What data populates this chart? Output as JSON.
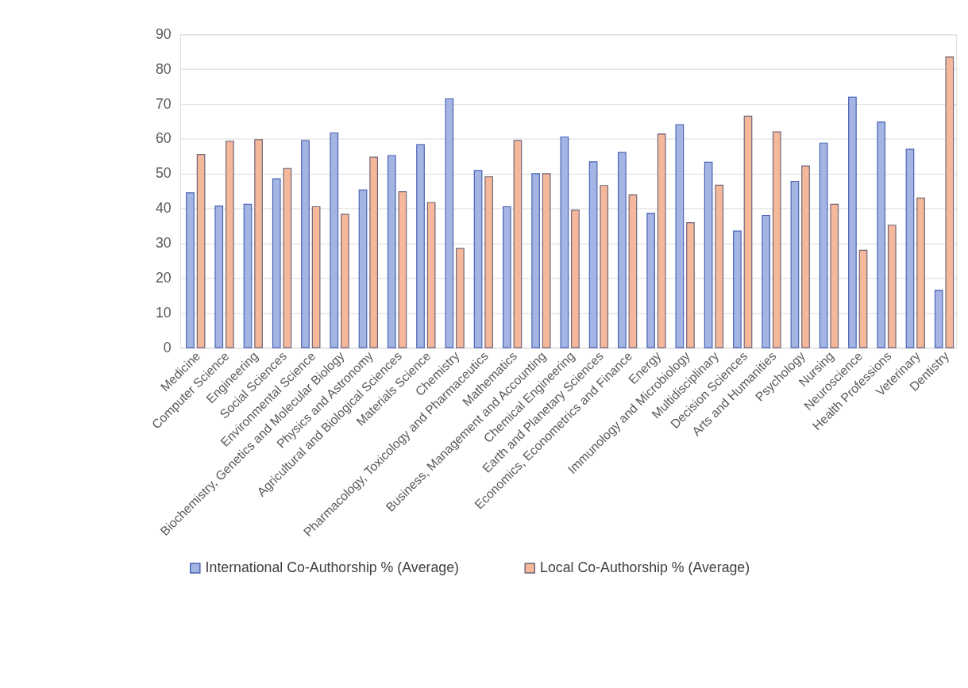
{
  "chart_data": {
    "type": "bar",
    "categories": [
      "Medicine",
      "Computer Science",
      "Engineering",
      "Social Sciences",
      "Environmental Science",
      "Biochemistry, Genetics and Molecular Biology",
      "Physics and Astronomy",
      "Agricultural and Biological Sciences",
      "Materials Science",
      "Chemistry",
      "Pharmacology, Toxicology and Pharmaceutics",
      "Mathematics",
      "Business, Management and Accounting",
      "Chemical Engineering",
      "Earth and Planetary Sciences",
      "Economics, Econometrics and Finance",
      "Energy",
      "Immunology and Microbiology",
      "Multidisciplinary",
      "Decision Sciences",
      "Arts and Humanities",
      "Psychology",
      "Nursing",
      "Neuroscience",
      "Health Professions",
      "Veterinary",
      "Dentistry"
    ],
    "series": [
      {
        "name": "International Co-Authorship % (Average)",
        "color": "#a4b5e3",
        "values": [
          44.5,
          40.7,
          41.2,
          48.5,
          59.5,
          61.7,
          45.3,
          55.2,
          58.3,
          71.5,
          50.9,
          40.5,
          50.0,
          60.5,
          53.4,
          56.1,
          38.6,
          64.1,
          53.3,
          33.5,
          38.0,
          47.8,
          58.8,
          72.0,
          64.8,
          57.0,
          16.5
        ]
      },
      {
        "name": "Local Co-Authorship % (Average)",
        "color": "#f6b89a",
        "values": [
          55.5,
          59.3,
          59.8,
          51.5,
          40.5,
          38.3,
          54.7,
          44.8,
          41.7,
          28.5,
          49.1,
          59.5,
          50.0,
          39.5,
          46.6,
          43.9,
          61.4,
          35.9,
          46.7,
          66.5,
          62.0,
          52.2,
          41.2,
          28.0,
          35.2,
          43.0,
          83.5
        ]
      }
    ],
    "ylim": [
      0,
      90
    ],
    "yticks": [
      0,
      10,
      20,
      30,
      40,
      50,
      60,
      70,
      80,
      90
    ],
    "grid": "y",
    "legend": "bottom"
  }
}
